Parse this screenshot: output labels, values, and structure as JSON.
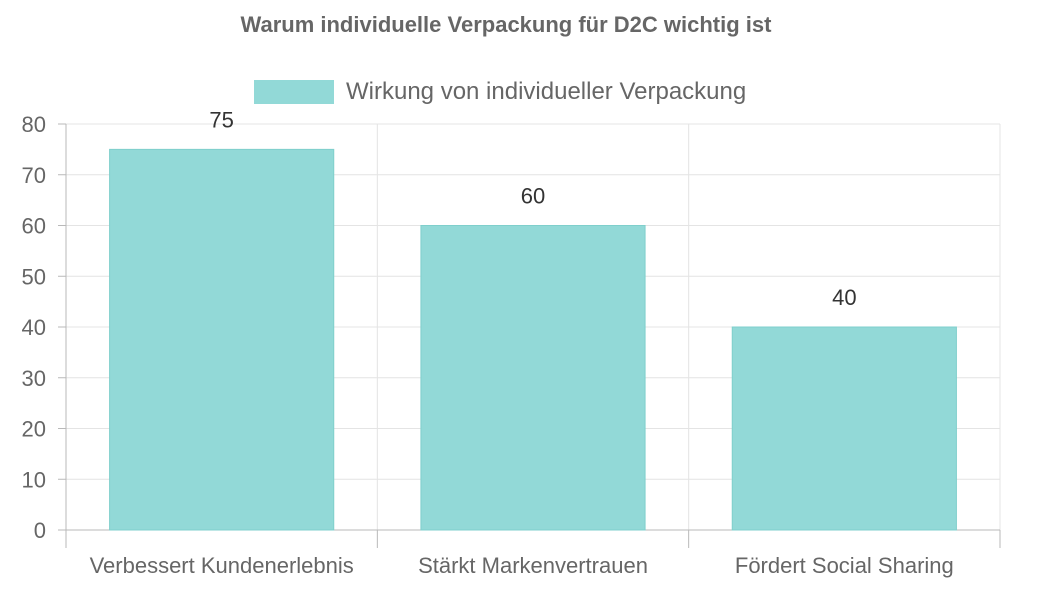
{
  "chart_data": {
    "type": "bar",
    "title": "Warum individuelle Verpackung für D2C wichtig ist",
    "categories": [
      "Verbessert Kundenerlebnis",
      "Stärkt Markenvertrauen",
      "Fördert Social Sharing"
    ],
    "series": [
      {
        "name": "Wirkung von individueller Verpackung",
        "values": [
          75,
          60,
          40
        ]
      }
    ],
    "data_labels": [
      "75",
      "60",
      "40"
    ],
    "ylim": [
      0,
      80
    ],
    "yticks": [
      0,
      10,
      20,
      30,
      40,
      50,
      60,
      70,
      80
    ],
    "xlabel": "",
    "ylabel": "",
    "grid": true,
    "legend": "top-center",
    "colors": {
      "bar_fill": "#92d9d7",
      "bar_stroke": "#7fcfcc",
      "grid": "#e4e4e4",
      "axis": "#b9b9b9",
      "text": "#666666",
      "title": "#666666",
      "value_label": "#333333"
    }
  }
}
